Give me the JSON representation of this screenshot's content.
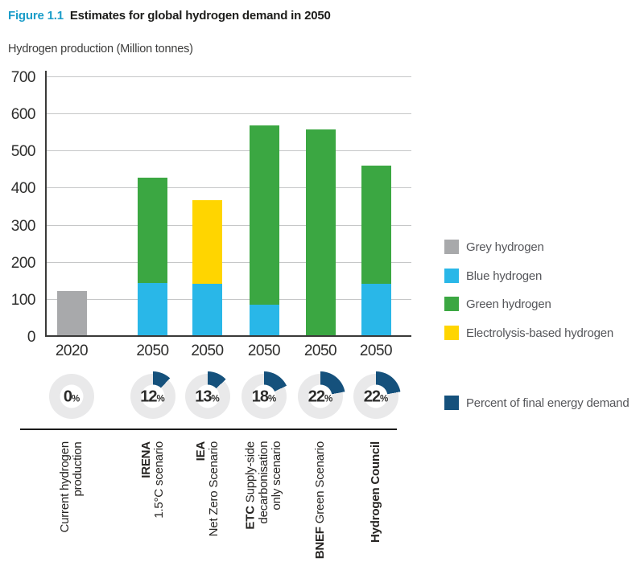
{
  "figure": {
    "label": "Figure 1.1",
    "title": "Estimates for global hydrogen demand in 2050",
    "axis_title": "Hydrogen production (Million tonnes)"
  },
  "colors": {
    "grey": "#a8a9ab",
    "blue": "#29b7e8",
    "green": "#3ba742",
    "yellow": "#ffd500",
    "navy": "#15517c",
    "figure_label": "#1b9dc9",
    "donut_ring": "#e9e9ea"
  },
  "chart_data": {
    "type": "bar",
    "stacked": true,
    "title": "Estimates for global hydrogen demand in 2050",
    "ylabel": "Hydrogen production (Million tonnes)",
    "ylim": [
      0,
      700
    ],
    "yticks": [
      0,
      100,
      200,
      300,
      400,
      500,
      600,
      700
    ],
    "grid": "horizontal",
    "legend_position": "right",
    "categories": [
      "2020",
      "2050",
      "2050",
      "2050",
      "2050",
      "2050"
    ],
    "series": [
      {
        "name": "Grey hydrogen",
        "color_key": "grey",
        "values": [
          120,
          0,
          0,
          0,
          0,
          0
        ]
      },
      {
        "name": "Blue hydrogen",
        "color_key": "blue",
        "values": [
          0,
          140,
          138,
          83,
          0,
          138
        ]
      },
      {
        "name": "Green hydrogen",
        "color_key": "green",
        "values": [
          0,
          285,
          0,
          482,
          555,
          319
        ]
      },
      {
        "name": "Electrolysis-based hydrogen",
        "color_key": "yellow",
        "values": [
          0,
          0,
          227,
          0,
          0,
          0
        ]
      }
    ],
    "totals": [
      120,
      425,
      365,
      565,
      555,
      457
    ],
    "percent_of_final_energy_demand": [
      0,
      12,
      13,
      18,
      22,
      22
    ],
    "source_labels": [
      {
        "lines": [
          [
            {
              "t": "Current hydrogen"
            }
          ],
          [
            {
              "t": "production"
            }
          ]
        ]
      },
      {
        "lines": [
          [
            {
              "t": "IRENA",
              "b": true
            }
          ],
          [
            {
              "t": "1.5°C scenario"
            }
          ]
        ]
      },
      {
        "lines": [
          [
            {
              "t": "IEA",
              "b": true
            }
          ],
          [
            {
              "t": "Net Zero Scenario"
            }
          ]
        ]
      },
      {
        "lines": [
          [
            {
              "t": "ETC",
              "b": true
            },
            {
              "t": " Supply-side"
            }
          ],
          [
            {
              "t": "decarbonisation"
            }
          ],
          [
            {
              "t": "only scenario"
            }
          ]
        ]
      },
      {
        "lines": [
          [
            {
              "t": "BNEF",
              "b": true
            },
            {
              "t": " Green Scenario"
            }
          ]
        ]
      },
      {
        "lines": [
          [
            {
              "t": "Hydrogen Council",
              "b": true
            }
          ]
        ]
      }
    ],
    "legend": [
      {
        "label": "Grey hydrogen",
        "color_key": "grey"
      },
      {
        "label": "Blue hydrogen",
        "color_key": "blue"
      },
      {
        "label": "Green hydrogen",
        "color_key": "green"
      },
      {
        "label": "Electrolysis-based hydrogen",
        "color_key": "yellow"
      },
      {
        "label": "Percent of final energy demand",
        "color_key": "navy"
      }
    ]
  }
}
